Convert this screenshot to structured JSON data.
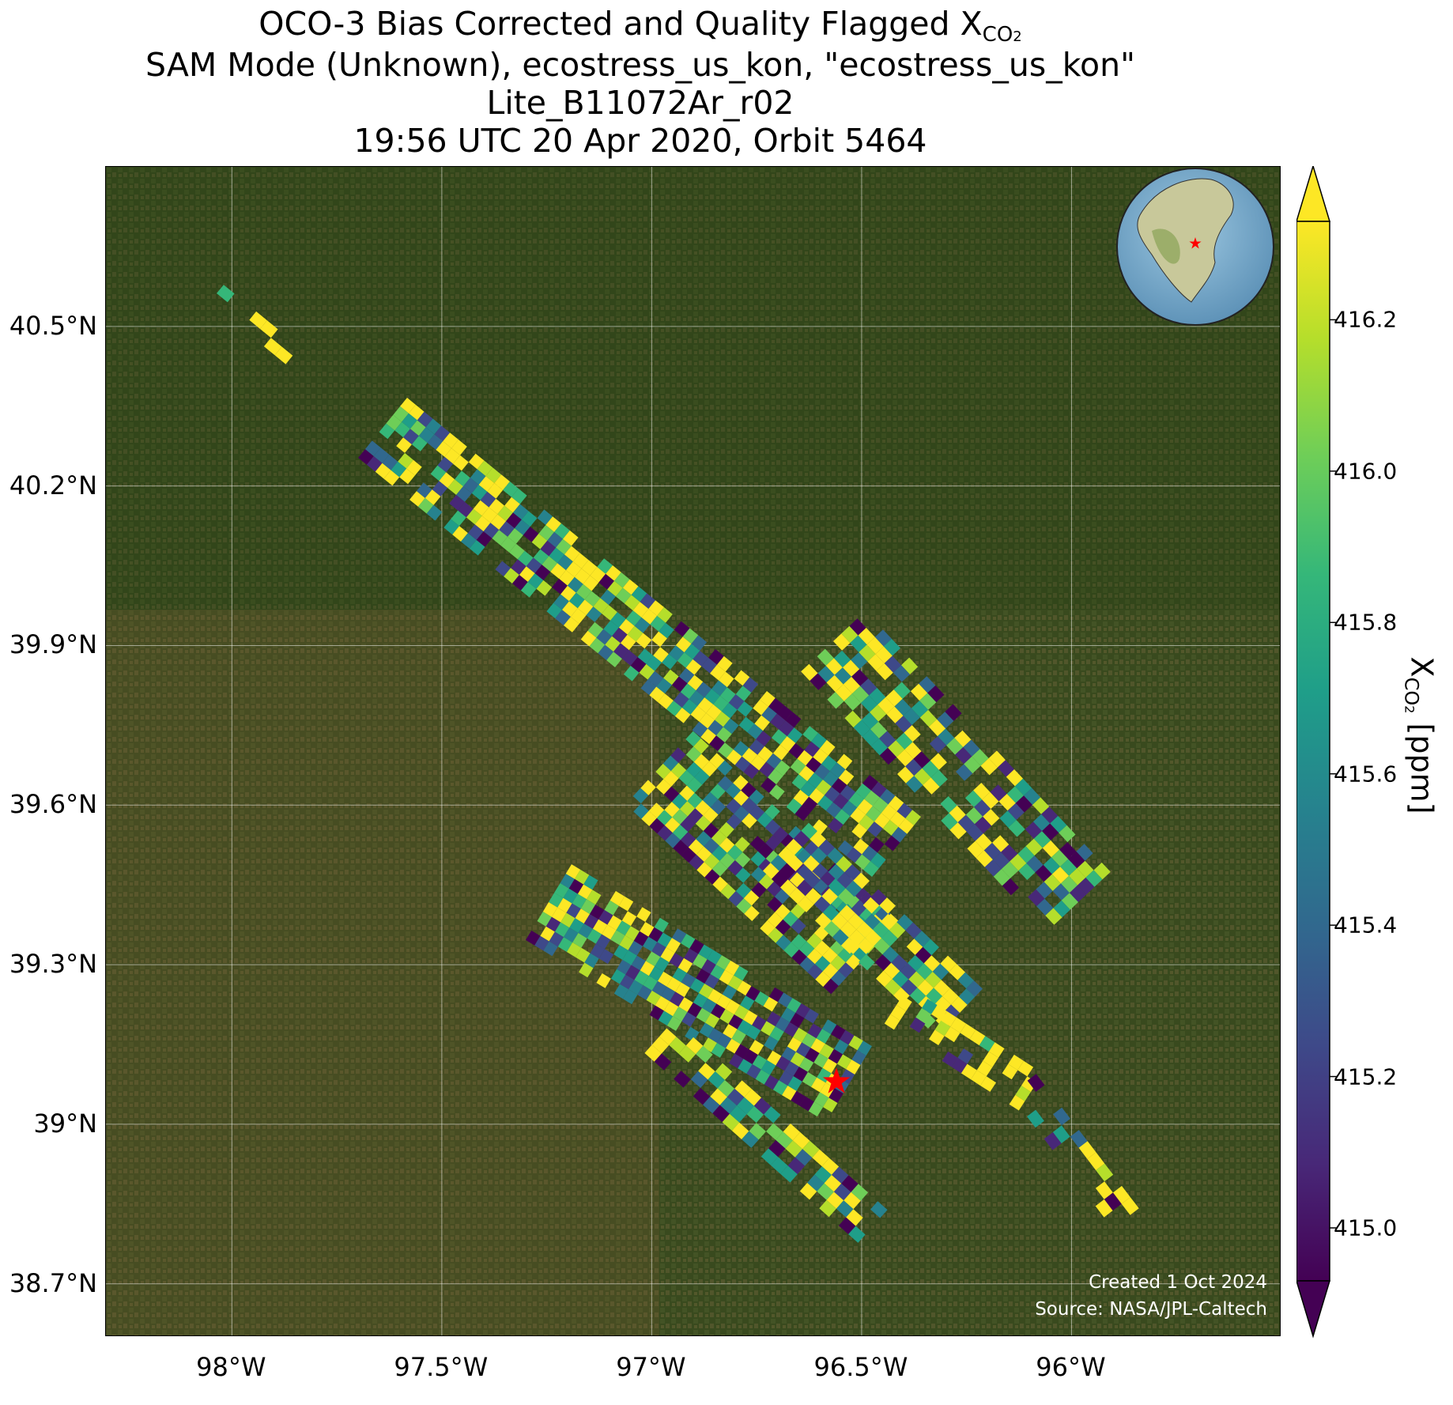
{
  "title": {
    "line1_prefix": "OCO-3 Bias Corrected and Quality Flagged X",
    "line1_sub": "CO",
    "line1_subsub": "2",
    "line2": "SAM Mode (Unknown), ecostress_us_kon, \"ecostress_us_kon\"",
    "line3": "Lite_B11072Ar_r02",
    "line4": "19:56 UTC 20 Apr 2020, Orbit 5464"
  },
  "map": {
    "lon_ticks": [
      "98°W",
      "97.5°W",
      "97°W",
      "96.5°W",
      "96°W"
    ],
    "lon_values": [
      -98.0,
      -97.5,
      -97.0,
      -96.5,
      -96.0
    ],
    "lat_ticks": [
      "40.5°N",
      "40.2°N",
      "39.9°N",
      "39.6°N",
      "39.3°N",
      "39°N",
      "38.7°N"
    ],
    "lat_values": [
      40.5,
      40.2,
      39.9,
      39.6,
      39.3,
      39.0,
      38.7
    ],
    "lon_range": [
      -98.3,
      -95.5
    ],
    "lat_range": [
      38.6,
      40.8
    ],
    "target_marker": {
      "lon": -96.56,
      "lat": 39.08,
      "color": "#ff0000"
    },
    "credit_line1": "Created 1 Oct 2024",
    "credit_line2": "Source: NASA/JPL-Caltech",
    "inset_globe": {
      "description_icon": "globe-icon",
      "marker_color": "#ff0000"
    }
  },
  "colorbar": {
    "label_prefix": "X",
    "label_sub": "CO",
    "label_subsub": "2",
    "label_suffix": " [ppm]",
    "ticks": [
      "415.0",
      "415.2",
      "415.4",
      "415.6",
      "415.8",
      "416.0",
      "416.2"
    ],
    "tick_values": [
      415.0,
      415.2,
      415.4,
      415.6,
      415.8,
      416.0,
      416.2
    ],
    "vmin": 414.93,
    "vmax": 416.33,
    "colormap": "viridis",
    "extend": "both"
  },
  "colors": {
    "viridis": [
      "#440154",
      "#482878",
      "#3e4989",
      "#31688e",
      "#26828e",
      "#1f9e89",
      "#35b779",
      "#6ece58",
      "#b5de2b",
      "#fde725"
    ]
  }
}
